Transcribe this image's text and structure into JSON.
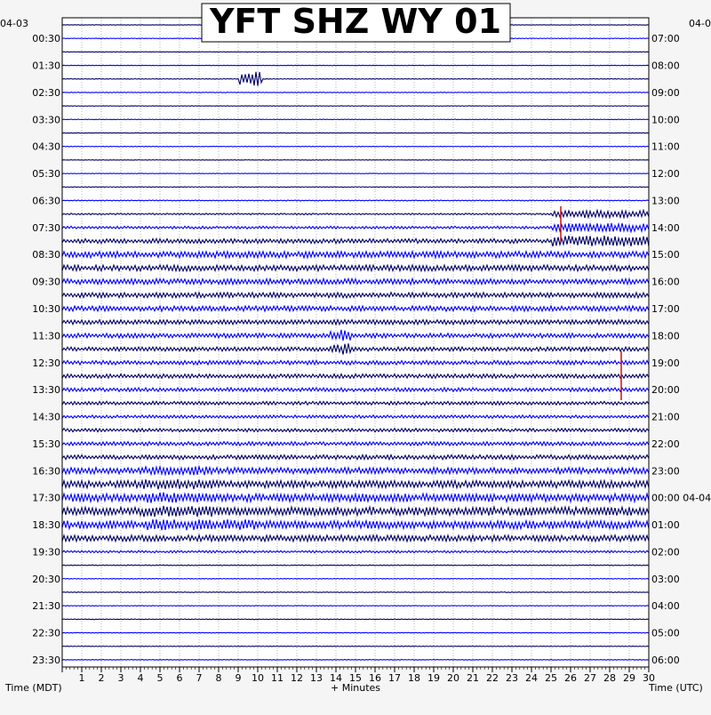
{
  "chart_data": {
    "type": "line",
    "title": "YFT SHZ WY 01",
    "left_date": "04-03",
    "right_date": "04-0",
    "xlabel": "+ Minutes",
    "left_axis_label": "Time (MDT)",
    "right_axis_label": "Time (UTC)",
    "xlim": [
      0,
      30
    ],
    "x_ticks": [
      "1",
      "2",
      "3",
      "4",
      "5",
      "6",
      "7",
      "8",
      "9",
      "10",
      "11",
      "12",
      "13",
      "14",
      "15",
      "16",
      "17",
      "18",
      "19",
      "20",
      "21",
      "22",
      "23",
      "24",
      "25",
      "26",
      "27",
      "28",
      "29",
      "30"
    ],
    "left_ticks": [
      "00:30",
      "01:30",
      "02:30",
      "03:30",
      "04:30",
      "05:30",
      "06:30",
      "07:30",
      "08:30",
      "09:30",
      "10:30",
      "11:30",
      "12:30",
      "13:30",
      "14:30",
      "15:30",
      "16:30",
      "17:30",
      "18:30",
      "19:30",
      "20:30",
      "21:30",
      "22:30",
      "23:30"
    ],
    "right_ticks": [
      "07:00",
      "08:00",
      "09:00",
      "10:00",
      "11:00",
      "12:00",
      "13:00",
      "14:00",
      "15:00",
      "16:00",
      "17:00",
      "18:00",
      "19:00",
      "20:00",
      "21:00",
      "22:00",
      "23:00",
      "00:00 04-04",
      "01:00",
      "02:00",
      "03:00",
      "04:00",
      "05:00",
      "06:00"
    ],
    "trace_count": 48,
    "trace_colors": [
      "#000066",
      "#0000ff"
    ],
    "event_color": "#cc0000",
    "grid": true,
    "trace_activity": [
      0.3,
      0.3,
      0.3,
      0.3,
      0.4,
      0.4,
      0.3,
      0.3,
      0.3,
      0.3,
      0.3,
      0.3,
      0.4,
      0.5,
      0.9,
      1.5,
      2.6,
      3.6,
      3.4,
      3.2,
      3.0,
      3.0,
      2.7,
      2.6,
      2.4,
      2.4,
      2.4,
      2.2,
      2.0,
      1.8,
      2.0,
      2.2,
      2.6,
      3.6,
      4.2,
      4.6,
      4.8,
      4.6,
      3.6,
      1.3,
      0.5,
      0.4,
      0.4,
      0.4,
      0.4,
      0.4,
      0.4,
      0.4
    ]
  }
}
